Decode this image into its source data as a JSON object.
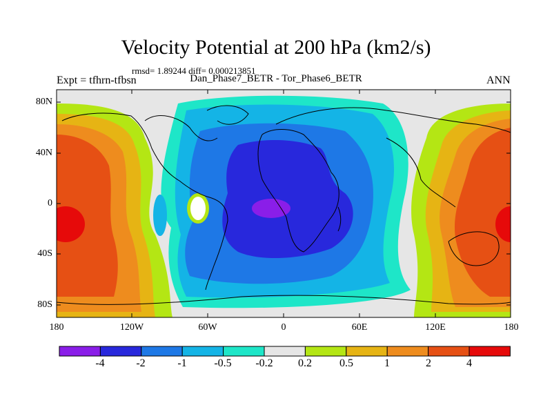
{
  "title": "Velocity Potential at 200 hPa (km2/s)",
  "stats": "rmsd= 1.89244 diff= 0.000213851",
  "left_label": "Expt = tfhrn-tfbsn",
  "center_label": "Dan_Phase7_BETR - Tor_Phase6_BETR",
  "right_label": "ANN",
  "lat_ticks": [
    "80N",
    "40N",
    "0",
    "40S",
    "80S"
  ],
  "lon_ticks": [
    "180",
    "120W",
    "60W",
    "0",
    "60E",
    "120E",
    "180"
  ],
  "colorbar": {
    "levels": [
      "-4",
      "-2",
      "-1",
      "-0.5",
      "-0.2",
      "0.2",
      "0.5",
      "1",
      "2",
      "4"
    ],
    "colors": [
      "#8a1ee8",
      "#2828dc",
      "#1e78e6",
      "#14b4e6",
      "#1ee6c8",
      "#e6e6e6",
      "#b4e614",
      "#e6b414",
      "#ee8c1e",
      "#e65014",
      "#e60a0a"
    ]
  }
}
